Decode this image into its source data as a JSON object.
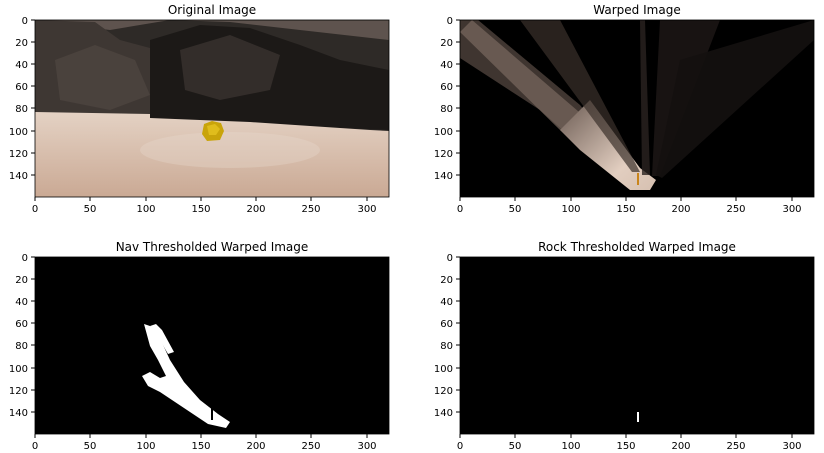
{
  "figure": {
    "panels": [
      {
        "title": "Original Image",
        "xticks": [
          "0",
          "50",
          "100",
          "150",
          "200",
          "250",
          "300"
        ],
        "yticks": [
          "0",
          "20",
          "40",
          "60",
          "80",
          "100",
          "120",
          "140"
        ],
        "image_size": [
          320,
          160
        ],
        "content": "camera image"
      },
      {
        "title": "Warped Image",
        "xticks": [
          "0",
          "50",
          "100",
          "150",
          "200",
          "250",
          "300"
        ],
        "yticks": [
          "0",
          "20",
          "40",
          "60",
          "80",
          "100",
          "120",
          "140"
        ],
        "image_size": [
          320,
          160
        ],
        "content": "perspective warp"
      },
      {
        "title": "Nav Thresholded Warped Image",
        "xticks": [
          "0",
          "50",
          "100",
          "150",
          "200",
          "250",
          "300"
        ],
        "yticks": [
          "0",
          "20",
          "40",
          "60",
          "80",
          "100",
          "120",
          "140"
        ],
        "image_size": [
          320,
          160
        ],
        "content": "binary navigable terrain mask"
      },
      {
        "title": "Rock Thresholded Warped Image",
        "xticks": [
          "0",
          "50",
          "100",
          "150",
          "200",
          "250",
          "300"
        ],
        "yticks": [
          "0",
          "20",
          "40",
          "60",
          "80",
          "100",
          "120",
          "140"
        ],
        "image_size": [
          320,
          160
        ],
        "content": "binary rock mask"
      }
    ],
    "colors": {
      "axes": "#000000",
      "sand": "#d8c3b3",
      "rock": "#2e2a27",
      "sky": "#6e625d",
      "nugget": "#c9a40a",
      "mask_on": "#ffffff",
      "mask_off": "#000000"
    }
  }
}
